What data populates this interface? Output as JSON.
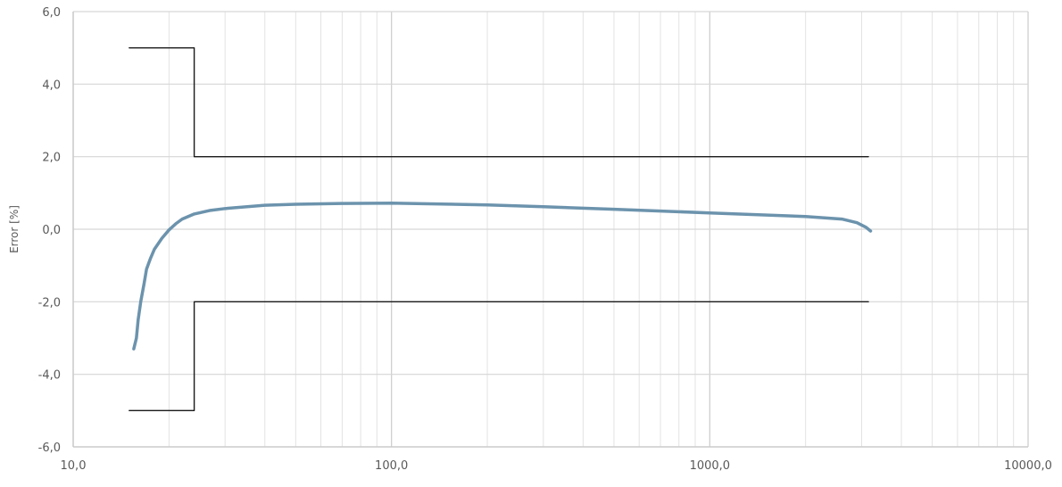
{
  "chart_data": {
    "type": "line",
    "xscale": "log",
    "xlim": [
      10,
      10000
    ],
    "ylim": [
      -6,
      6
    ],
    "xlabel": "",
    "ylabel": "Error [%]",
    "x_ticks": [
      "10,0",
      "100,0",
      "1000,0",
      "10000,0"
    ],
    "y_ticks": [
      "6,0",
      "4,0",
      "2,0",
      "0,0",
      "-2,0",
      "-4,0",
      "-6,0"
    ],
    "grid": true,
    "series": [
      {
        "role": "measured",
        "color": "#6c93ad",
        "points": [
          [
            15.5,
            -3.3
          ],
          [
            15.8,
            -3.0
          ],
          [
            16.0,
            -2.5
          ],
          [
            16.3,
            -2.0
          ],
          [
            16.7,
            -1.5
          ],
          [
            17.0,
            -1.1
          ],
          [
            17.5,
            -0.8
          ],
          [
            18.0,
            -0.55
          ],
          [
            19.0,
            -0.25
          ],
          [
            20.0,
            -0.02
          ],
          [
            21.0,
            0.15
          ],
          [
            22.0,
            0.28
          ],
          [
            24.0,
            0.42
          ],
          [
            27.0,
            0.52
          ],
          [
            30.0,
            0.57
          ],
          [
            40.0,
            0.66
          ],
          [
            50.0,
            0.69
          ],
          [
            70.0,
            0.71
          ],
          [
            100.0,
            0.72
          ],
          [
            200.0,
            0.67
          ],
          [
            300.0,
            0.62
          ],
          [
            500.0,
            0.55
          ],
          [
            1000.0,
            0.45
          ],
          [
            2000.0,
            0.35
          ],
          [
            2600.0,
            0.28
          ],
          [
            2900.0,
            0.18
          ],
          [
            3100.0,
            0.05
          ],
          [
            3200.0,
            -0.05
          ]
        ]
      },
      {
        "role": "upper-limit",
        "color": "#1a1a1a",
        "points": [
          [
            15.0,
            5.0
          ],
          [
            24.0,
            5.0
          ],
          [
            24.0,
            2.0
          ],
          [
            3150.0,
            2.0
          ]
        ]
      },
      {
        "role": "lower-limit",
        "color": "#1a1a1a",
        "points": [
          [
            15.0,
            -5.0
          ],
          [
            24.0,
            -5.0
          ],
          [
            24.0,
            -2.0
          ],
          [
            3150.0,
            -2.0
          ]
        ]
      }
    ]
  }
}
